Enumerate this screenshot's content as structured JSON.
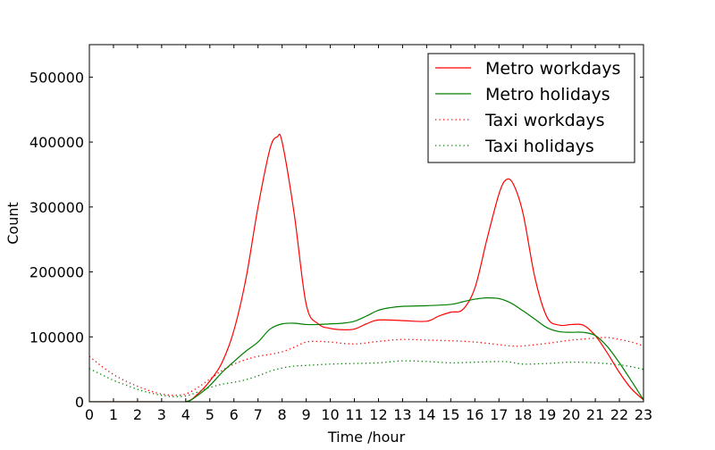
{
  "chart_data": {
    "type": "line",
    "title": "",
    "xlabel": "Time /hour",
    "ylabel": "Count",
    "xlim": [
      0,
      23
    ],
    "ylim": [
      0,
      550000
    ],
    "x_ticks": [
      0,
      1,
      2,
      3,
      4,
      5,
      6,
      7,
      8,
      9,
      10,
      11,
      12,
      13,
      14,
      15,
      16,
      17,
      18,
      19,
      20,
      21,
      22,
      23
    ],
    "y_ticks": [
      0,
      100000,
      200000,
      300000,
      400000,
      500000
    ],
    "grid": false,
    "legend_position": "top-right",
    "series": [
      {
        "name": "Metro workdays",
        "color": "#ff0000",
        "style": "solid",
        "points": [
          [
            0,
            0
          ],
          [
            1,
            0
          ],
          [
            2,
            0
          ],
          [
            3,
            0
          ],
          [
            4,
            0
          ],
          [
            4.5,
            12000
          ],
          [
            5,
            32000
          ],
          [
            5.5,
            60000
          ],
          [
            6,
            110000
          ],
          [
            6.5,
            190000
          ],
          [
            7,
            300000
          ],
          [
            7.5,
            390000
          ],
          [
            7.8,
            408000
          ],
          [
            8,
            400000
          ],
          [
            8.5,
            290000
          ],
          [
            9,
            150000
          ],
          [
            9.5,
            120000
          ],
          [
            10,
            113000
          ],
          [
            10.5,
            111000
          ],
          [
            11,
            112000
          ],
          [
            11.5,
            120000
          ],
          [
            12,
            126000
          ],
          [
            13,
            125000
          ],
          [
            14,
            124000
          ],
          [
            14.5,
            132000
          ],
          [
            15,
            138000
          ],
          [
            15.5,
            142000
          ],
          [
            16,
            175000
          ],
          [
            16.5,
            250000
          ],
          [
            17,
            320000
          ],
          [
            17.3,
            342000
          ],
          [
            17.6,
            335000
          ],
          [
            18,
            290000
          ],
          [
            18.5,
            190000
          ],
          [
            19,
            130000
          ],
          [
            19.5,
            118000
          ],
          [
            20,
            119000
          ],
          [
            20.5,
            118000
          ],
          [
            21,
            102000
          ],
          [
            21.5,
            75000
          ],
          [
            22,
            45000
          ],
          [
            22.5,
            20000
          ],
          [
            23,
            3000
          ]
        ]
      },
      {
        "name": "Metro holidays",
        "color": "#008000",
        "style": "solid",
        "points": [
          [
            0,
            0
          ],
          [
            1,
            0
          ],
          [
            2,
            0
          ],
          [
            3,
            0
          ],
          [
            4,
            0
          ],
          [
            4.5,
            10000
          ],
          [
            5,
            25000
          ],
          [
            5.5,
            45000
          ],
          [
            6,
            62000
          ],
          [
            6.5,
            78000
          ],
          [
            7,
            92000
          ],
          [
            7.5,
            112000
          ],
          [
            8,
            120000
          ],
          [
            8.5,
            121000
          ],
          [
            9,
            119000
          ],
          [
            9.5,
            119000
          ],
          [
            10,
            120000
          ],
          [
            10.5,
            121000
          ],
          [
            11,
            124000
          ],
          [
            11.5,
            132000
          ],
          [
            12,
            141000
          ],
          [
            12.5,
            145000
          ],
          [
            13,
            147000
          ],
          [
            14,
            148000
          ],
          [
            15,
            150000
          ],
          [
            15.5,
            154000
          ],
          [
            16,
            158000
          ],
          [
            16.5,
            160000
          ],
          [
            17,
            159000
          ],
          [
            17.5,
            152000
          ],
          [
            18,
            140000
          ],
          [
            18.5,
            127000
          ],
          [
            19,
            114000
          ],
          [
            19.5,
            108000
          ],
          [
            20,
            107000
          ],
          [
            20.5,
            107000
          ],
          [
            21,
            102000
          ],
          [
            21.5,
            85000
          ],
          [
            22,
            60000
          ],
          [
            22.5,
            32000
          ],
          [
            23,
            3000
          ]
        ]
      },
      {
        "name": "Taxi workdays",
        "color": "#ff0000",
        "style": "dotted",
        "points": [
          [
            0,
            70000
          ],
          [
            0.5,
            55000
          ],
          [
            1,
            42000
          ],
          [
            1.5,
            32000
          ],
          [
            2,
            24000
          ],
          [
            2.5,
            17000
          ],
          [
            3,
            12000
          ],
          [
            3.5,
            10000
          ],
          [
            4,
            12000
          ],
          [
            4.5,
            22000
          ],
          [
            5,
            35000
          ],
          [
            5.5,
            48000
          ],
          [
            6,
            58000
          ],
          [
            6.5,
            65000
          ],
          [
            7,
            70000
          ],
          [
            7.5,
            73000
          ],
          [
            8,
            77000
          ],
          [
            8.5,
            84000
          ],
          [
            9,
            92000
          ],
          [
            9.5,
            93000
          ],
          [
            10,
            92000
          ],
          [
            11,
            89000
          ],
          [
            12,
            93000
          ],
          [
            13,
            96000
          ],
          [
            14,
            95000
          ],
          [
            15,
            94000
          ],
          [
            16,
            92000
          ],
          [
            17,
            88000
          ],
          [
            17.5,
            86000
          ],
          [
            18,
            86000
          ],
          [
            19,
            90000
          ],
          [
            20,
            95000
          ],
          [
            21,
            98000
          ],
          [
            21.5,
            99000
          ],
          [
            22,
            96000
          ],
          [
            22.5,
            92000
          ],
          [
            23,
            86000
          ]
        ]
      },
      {
        "name": "Taxi holidays",
        "color": "#008000",
        "style": "dotted",
        "points": [
          [
            0,
            51000
          ],
          [
            0.5,
            42000
          ],
          [
            1,
            33000
          ],
          [
            1.5,
            26000
          ],
          [
            2,
            19000
          ],
          [
            2.5,
            14000
          ],
          [
            3,
            10000
          ],
          [
            3.5,
            8000
          ],
          [
            4,
            9000
          ],
          [
            4.5,
            15000
          ],
          [
            5,
            22000
          ],
          [
            5.5,
            27000
          ],
          [
            6,
            30000
          ],
          [
            6.5,
            34000
          ],
          [
            7,
            40000
          ],
          [
            7.5,
            47000
          ],
          [
            8,
            52000
          ],
          [
            8.5,
            55000
          ],
          [
            9,
            56000
          ],
          [
            10,
            58000
          ],
          [
            11,
            59000
          ],
          [
            12,
            60000
          ],
          [
            13,
            63000
          ],
          [
            14,
            62000
          ],
          [
            15,
            60000
          ],
          [
            16,
            61000
          ],
          [
            17,
            62000
          ],
          [
            17.5,
            61000
          ],
          [
            18,
            58000
          ],
          [
            19,
            59000
          ],
          [
            20,
            61000
          ],
          [
            21,
            60000
          ],
          [
            22,
            57000
          ],
          [
            22.5,
            54000
          ],
          [
            23,
            50000
          ]
        ]
      }
    ]
  }
}
